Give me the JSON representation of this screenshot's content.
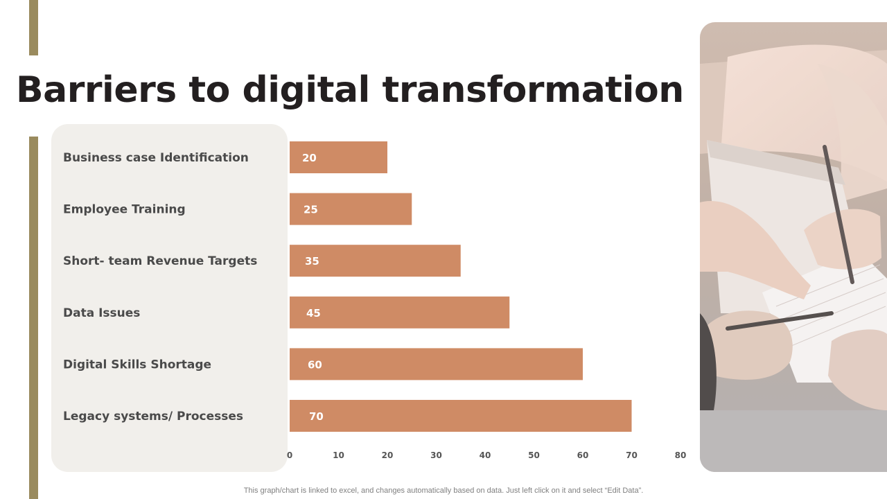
{
  "title": "Barriers to digital transformation",
  "footnote": "This graph/chart is linked to excel,  and changes automatically based on data. Just left click on it and select “Edit Data”.",
  "colors": {
    "accent": "#9a8b5e",
    "bar": "#cf8b65",
    "panel": "#f1efeb"
  },
  "chart_data": {
    "type": "bar",
    "orientation": "horizontal",
    "categories": [
      "Business case Identification",
      "Employee Training",
      "Short- team Revenue Targets",
      "Data Issues",
      "Digital Skills Shortage",
      "Legacy systems/ Processes"
    ],
    "values": [
      20,
      25,
      35,
      45,
      60,
      70
    ],
    "data_labels": [
      "20",
      "25",
      "35",
      "45",
      "60",
      "70"
    ],
    "x_ticks": [
      "0",
      "10",
      "20",
      "30",
      "40",
      "50",
      "60",
      "70",
      "80"
    ],
    "xlim": [
      0,
      80
    ],
    "grid": false,
    "legend": "none"
  }
}
